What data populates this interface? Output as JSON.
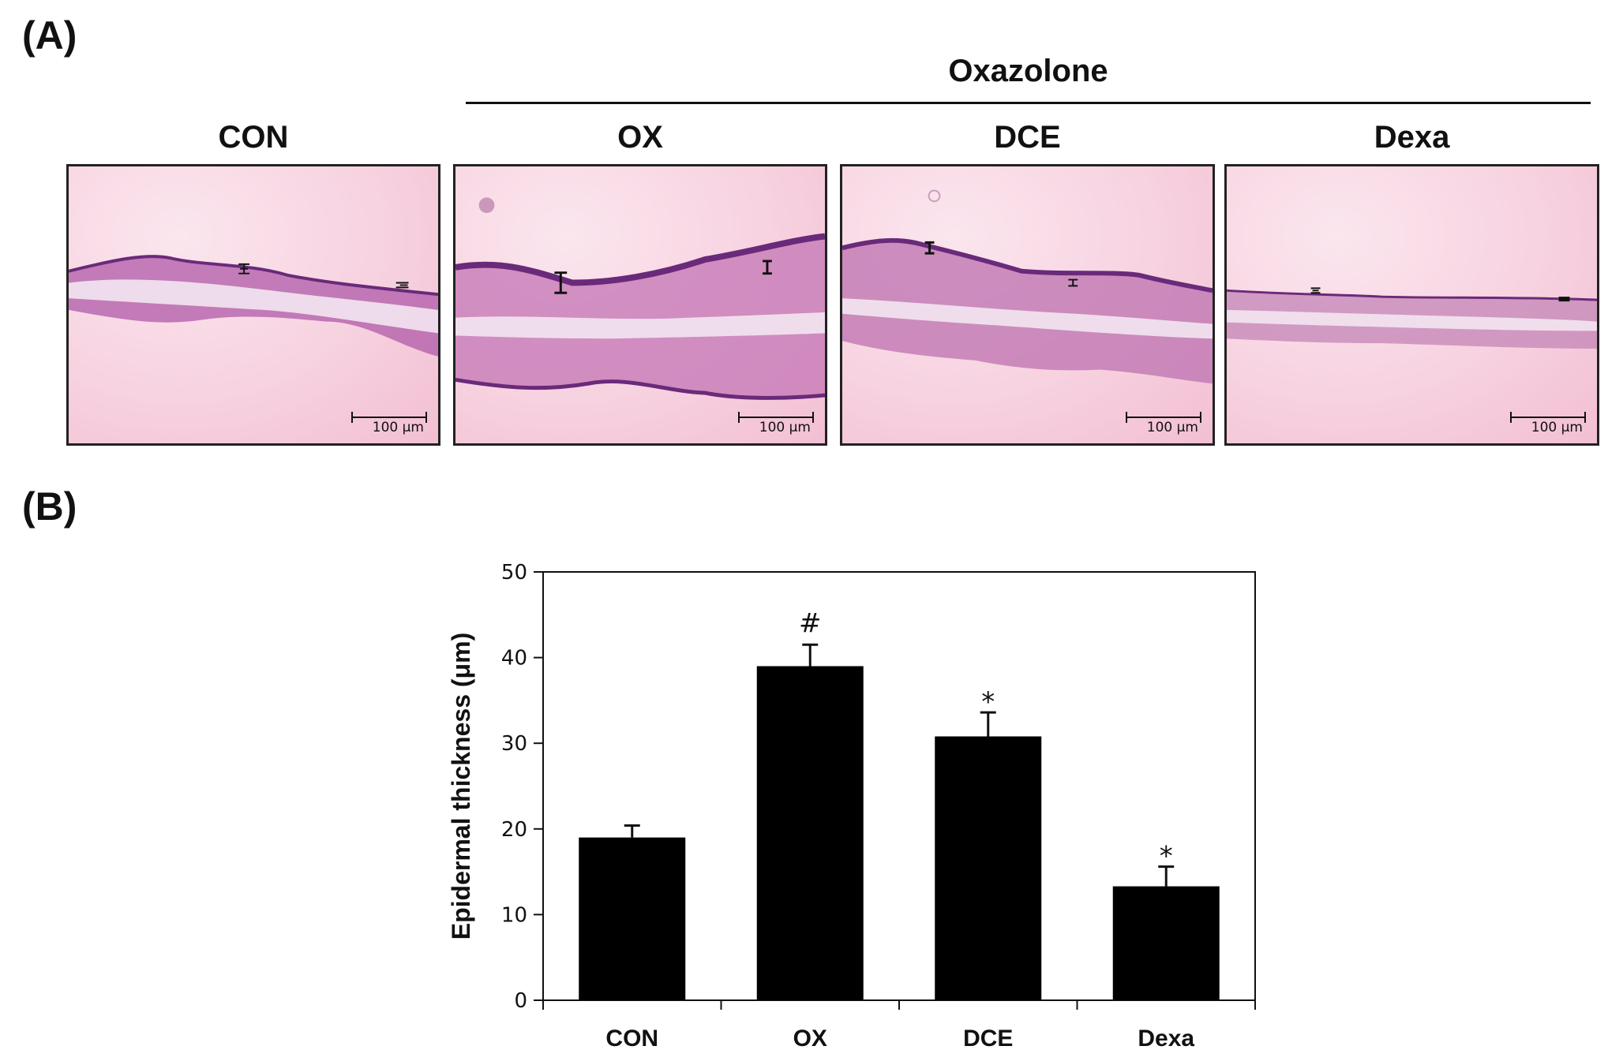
{
  "panel_a": {
    "label": "(A)",
    "group_title": "Oxazolone",
    "columns": [
      "CON",
      "OX",
      "DCE",
      "Dexa"
    ],
    "scale_bar_label": "100 μm"
  },
  "panel_b": {
    "label": "(B)"
  },
  "chart_data": {
    "type": "bar",
    "categories": [
      "CON",
      "OX",
      "DCE",
      "Dexa"
    ],
    "values": [
      19.0,
      39.0,
      30.8,
      13.3
    ],
    "error": [
      1.4,
      2.5,
      2.8,
      2.3
    ],
    "annotations": [
      "",
      "#",
      "*",
      "*"
    ],
    "ylabel": "Epidermal thickness (μm)",
    "xlabel": "",
    "ylim": [
      0,
      50
    ],
    "yticks": [
      0,
      10,
      20,
      30,
      40,
      50
    ],
    "bar_color": "#000000",
    "grid": false
  }
}
